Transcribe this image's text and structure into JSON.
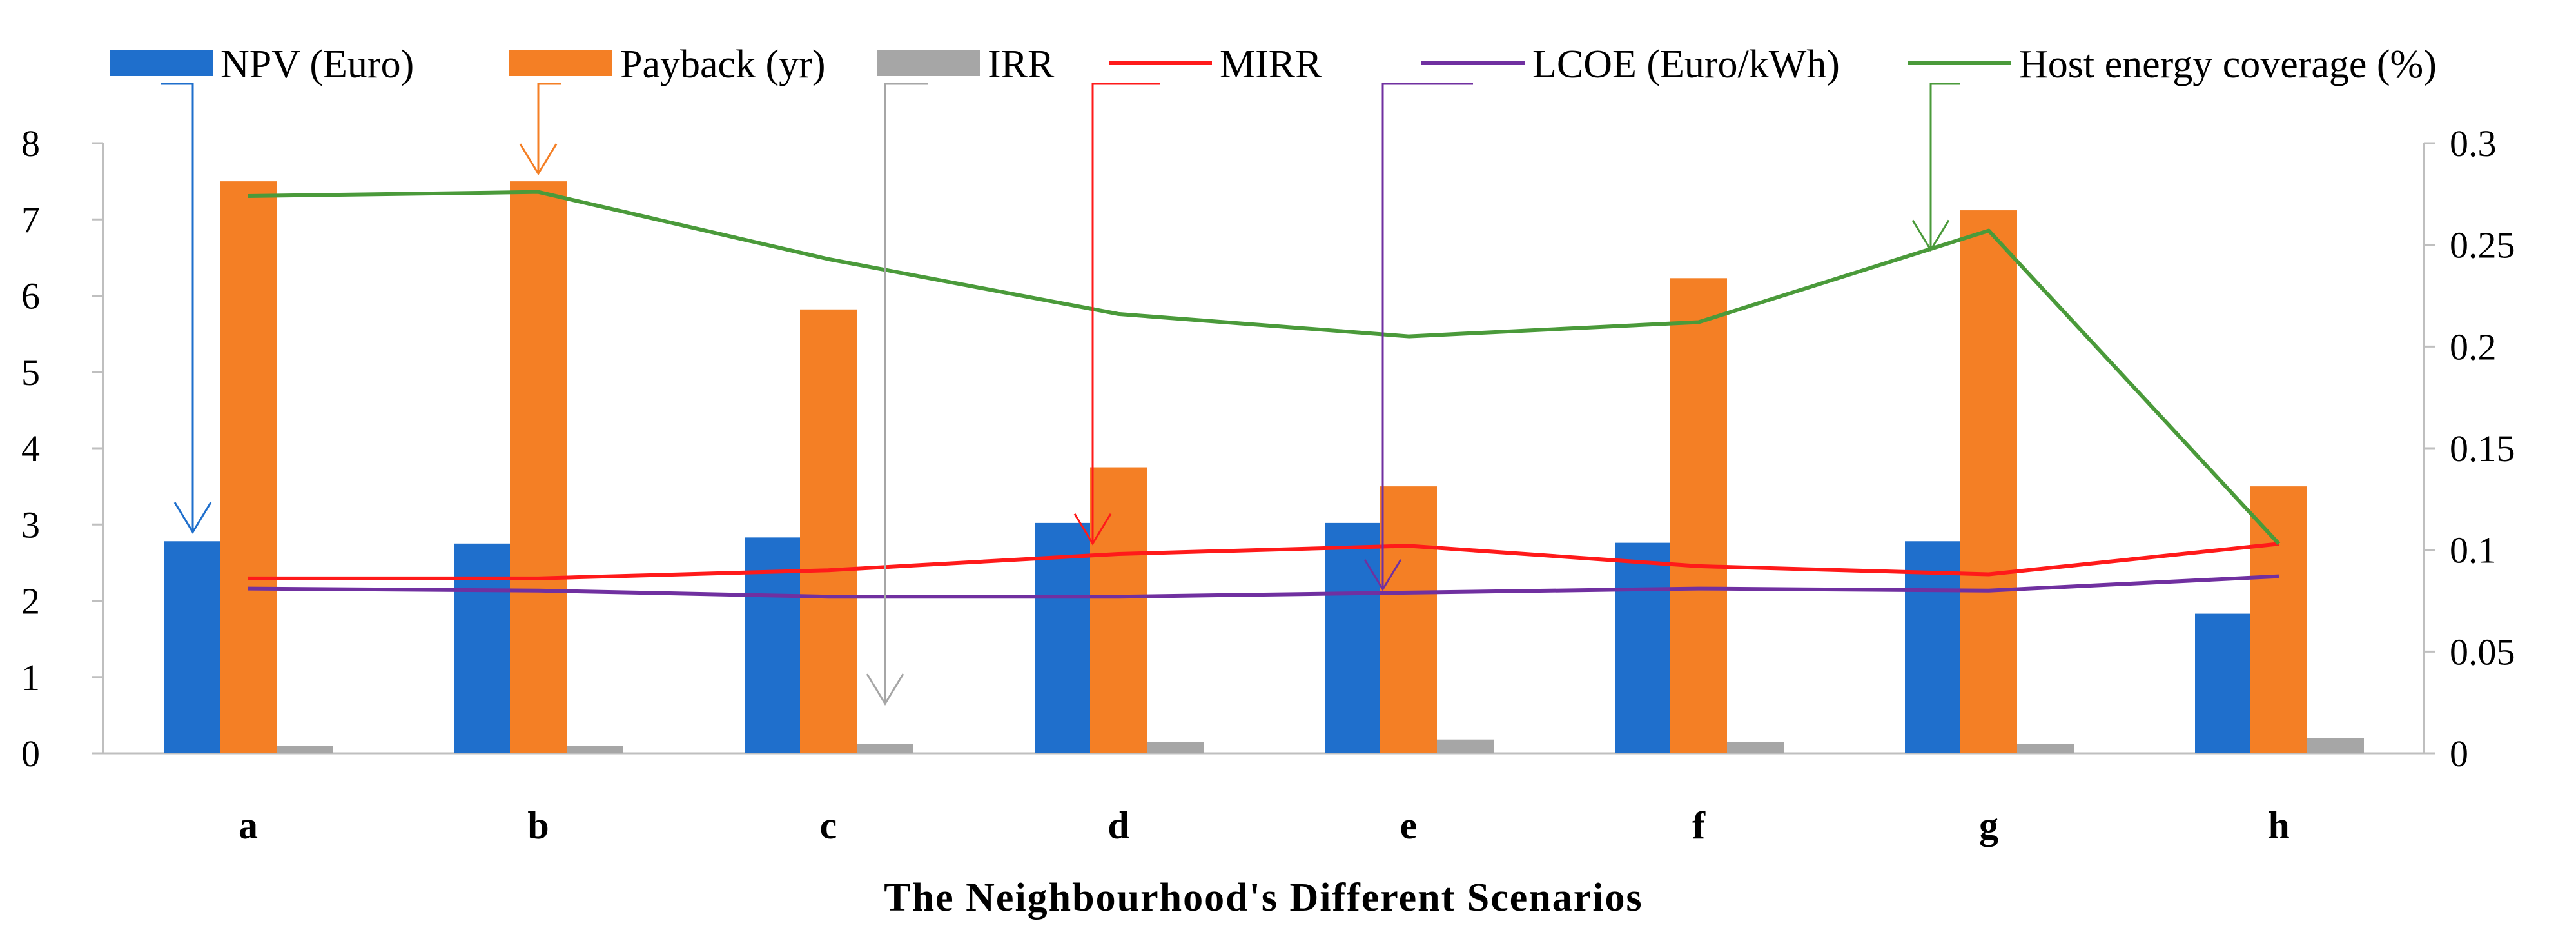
{
  "chart_data": {
    "type": "bar",
    "title": "",
    "xlabel": "The Neighbourhood's Different Scenarios",
    "ylabel": "",
    "y2label": "",
    "categories": [
      "a",
      "b",
      "c",
      "d",
      "e",
      "f",
      "g",
      "h"
    ],
    "ylim": [
      0,
      8
    ],
    "yticks": [
      "0",
      "1",
      "2",
      "3",
      "4",
      "5",
      "6",
      "7",
      "8"
    ],
    "y2lim": [
      0,
      0.3
    ],
    "y2ticks": [
      "0",
      "0.05",
      "0.1",
      "0.15",
      "0.2",
      "0.25",
      "0.3"
    ],
    "grid": false,
    "legend_position": "top",
    "series": [
      {
        "name": "NPV (Euro)",
        "kind": "bar",
        "axis": "left",
        "color": "#1f6fcc",
        "values": [
          2.78,
          2.75,
          2.83,
          3.02,
          3.02,
          2.76,
          2.78,
          1.83
        ]
      },
      {
        "name": "Payback (yr)",
        "kind": "bar",
        "axis": "left",
        "color": "#f47f25",
        "values": [
          7.5,
          7.5,
          5.82,
          3.75,
          3.5,
          6.23,
          7.12,
          3.5
        ]
      },
      {
        "name": "IRR",
        "kind": "bar",
        "axis": "left",
        "color": "#a6a6a6",
        "values": [
          0.1,
          0.1,
          0.12,
          0.15,
          0.18,
          0.15,
          0.12,
          0.2
        ]
      },
      {
        "name": "MIRR",
        "kind": "line",
        "axis": "right",
        "color": "#ff1a1a",
        "values": [
          0.086,
          0.086,
          0.09,
          0.098,
          0.102,
          0.092,
          0.088,
          0.103
        ]
      },
      {
        "name": "LCOE (Euro/kWh)",
        "kind": "line",
        "axis": "right",
        "color": "#7030a0",
        "values": [
          0.081,
          0.08,
          0.077,
          0.077,
          0.079,
          0.081,
          0.08,
          0.087
        ]
      },
      {
        "name": "Host energy coverage (%)",
        "kind": "line",
        "axis": "right",
        "color": "#4a9a3a",
        "values": [
          0.274,
          0.276,
          0.243,
          0.216,
          0.205,
          0.212,
          0.257,
          0.103
        ]
      }
    ],
    "annotations": [
      {
        "type": "arrow",
        "series": "NPV (Euro)",
        "category": "a",
        "points_to": 2.9,
        "axis": "left"
      },
      {
        "type": "arrow",
        "series": "Payback (yr)",
        "category": "b",
        "points_to": 7.6,
        "axis": "left"
      },
      {
        "type": "arrow",
        "series": "IRR",
        "category": "c",
        "points_to": 0.65,
        "axis": "left"
      },
      {
        "type": "arrow",
        "series": "MIRR",
        "category": "d",
        "points_to": 2.75,
        "axis": "left"
      },
      {
        "type": "arrow",
        "series": "LCOE (Euro/kWh)",
        "category": "e",
        "points_to": 2.15,
        "axis": "left"
      },
      {
        "type": "arrow",
        "series": "Host energy coverage (%)",
        "category": "g",
        "points_to": 6.6,
        "axis": "left"
      }
    ]
  }
}
